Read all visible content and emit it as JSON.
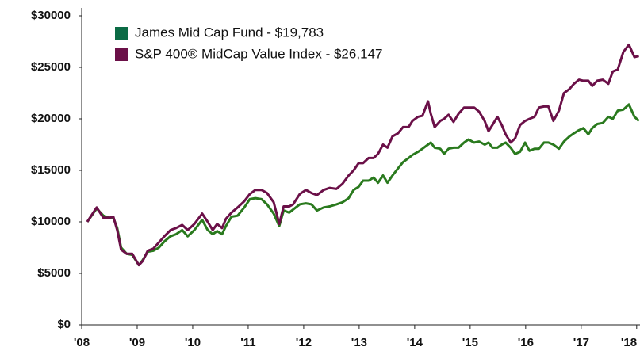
{
  "chart_data": {
    "type": "line",
    "x": [
      2008.1,
      2008.27,
      2008.39,
      2008.5,
      2008.57,
      2008.64,
      2008.71,
      2008.81,
      2008.91,
      2009.03,
      2009.1,
      2009.19,
      2009.29,
      2009.39,
      2009.49,
      2009.6,
      2009.7,
      2009.81,
      2009.91,
      2010.03,
      2010.17,
      2010.27,
      2010.36,
      2010.44,
      2010.53,
      2010.6,
      2010.7,
      2010.81,
      2010.93,
      2011.03,
      2011.13,
      2011.24,
      2011.34,
      2011.46,
      2011.56,
      2011.64,
      2011.74,
      2011.81,
      2011.93,
      2012.04,
      2012.14,
      2012.24,
      2012.36,
      2012.47,
      2012.59,
      2012.7,
      2012.81,
      2012.9,
      2012.99,
      2013.07,
      2013.17,
      2013.26,
      2013.34,
      2013.43,
      2013.51,
      2013.6,
      2013.7,
      2013.79,
      2013.89,
      2013.96,
      2014.06,
      2014.14,
      2014.24,
      2014.29,
      2014.36,
      2014.46,
      2014.53,
      2014.61,
      2014.7,
      2014.79,
      2014.89,
      2014.97,
      2015.07,
      2015.16,
      2015.26,
      2015.33,
      2015.4,
      2015.49,
      2015.57,
      2015.64,
      2015.73,
      2015.81,
      2015.9,
      2015.99,
      2016.07,
      2016.16,
      2016.24,
      2016.33,
      2016.41,
      2016.5,
      2016.6,
      2016.69,
      2016.79,
      2016.87,
      2016.96,
      2017.04,
      2017.13,
      2017.2,
      2017.29,
      2017.39,
      2017.49,
      2017.57,
      2017.66,
      2017.76,
      2017.86,
      2017.96,
      2018.04
    ],
    "series": [
      {
        "name": "James Mid Cap Fund - $19,783",
        "color": "#2a7a1e",
        "legend_color": "#0b6b45",
        "values": [
          10000,
          11300,
          10600,
          10400,
          10400,
          9400,
          7500,
          6900,
          6800,
          5800,
          6300,
          7100,
          7200,
          7500,
          8100,
          8600,
          8800,
          9200,
          8600,
          9200,
          10200,
          9200,
          8800,
          9100,
          8800,
          9600,
          10500,
          10600,
          11400,
          12200,
          12300,
          12200,
          11700,
          10800,
          9600,
          11100,
          10900,
          11200,
          11700,
          11800,
          11700,
          11100,
          11400,
          11500,
          11700,
          11900,
          12300,
          13100,
          13400,
          14000,
          14000,
          14300,
          13800,
          14500,
          13800,
          14500,
          15200,
          15800,
          16200,
          16500,
          16800,
          17100,
          17500,
          17700,
          17200,
          17100,
          16600,
          17100,
          17200,
          17200,
          17700,
          18000,
          17700,
          17800,
          17500,
          17700,
          17200,
          17200,
          17500,
          17700,
          17200,
          16600,
          16800,
          17700,
          16900,
          17100,
          17100,
          17700,
          17700,
          17500,
          17100,
          17800,
          18300,
          18600,
          18900,
          19100,
          18500,
          19100,
          19500,
          19600,
          20200,
          20000,
          20800,
          20900,
          21400,
          20200,
          19800
        ]
      },
      {
        "name": "S&P 400® MidCap Value Index - $26,147",
        "color": "#6b1048",
        "legend_color": "#6b1048",
        "values": [
          10000,
          11400,
          10400,
          10400,
          10500,
          9200,
          7300,
          6900,
          6900,
          5800,
          6200,
          7200,
          7400,
          8000,
          8600,
          9200,
          9400,
          9700,
          9200,
          9800,
          10800,
          10000,
          9200,
          9800,
          9400,
          10300,
          10900,
          11400,
          12000,
          12700,
          13100,
          13100,
          12800,
          11900,
          9800,
          11500,
          11500,
          11700,
          12700,
          13100,
          12800,
          12600,
          13100,
          13300,
          13200,
          13700,
          14500,
          15000,
          15700,
          15700,
          16200,
          16200,
          16600,
          17500,
          17200,
          18300,
          18600,
          19200,
          19200,
          19800,
          20200,
          20300,
          21700,
          20500,
          19200,
          19800,
          20000,
          20400,
          19700,
          20500,
          21100,
          21100,
          21100,
          20700,
          19800,
          18800,
          19400,
          20200,
          19400,
          18500,
          17700,
          18100,
          19400,
          19800,
          20000,
          20200,
          21100,
          21200,
          21200,
          19800,
          20800,
          22500,
          22900,
          23400,
          23800,
          23700,
          23700,
          23200,
          23700,
          23800,
          23400,
          24600,
          24800,
          26500,
          27200,
          26000,
          26100
        ]
      }
    ],
    "xlim": [
      2008,
      2018.06
    ],
    "xticks": [
      {
        "value": 2008,
        "label": "'08"
      },
      {
        "value": 2009,
        "label": "'09"
      },
      {
        "value": 2010,
        "label": "'10"
      },
      {
        "value": 2011,
        "label": "'11"
      },
      {
        "value": 2012,
        "label": "'12"
      },
      {
        "value": 2013,
        "label": "'13"
      },
      {
        "value": 2014,
        "label": "'14"
      },
      {
        "value": 2015,
        "label": "'15"
      },
      {
        "value": 2016,
        "label": "'16"
      },
      {
        "value": 2017,
        "label": "'17"
      },
      {
        "value": 2018,
        "label": "'18"
      }
    ],
    "ylim": [
      0,
      30000
    ],
    "yticks": [
      {
        "value": 0,
        "label": "$0"
      },
      {
        "value": 5000,
        "label": "$5000"
      },
      {
        "value": 10000,
        "label": "$10000"
      },
      {
        "value": 15000,
        "label": "$15000"
      },
      {
        "value": 20000,
        "label": "$20000"
      },
      {
        "value": 25000,
        "label": "$25000"
      },
      {
        "value": 30000,
        "label": "$30000"
      }
    ],
    "grid": false,
    "legend": "upper left"
  }
}
